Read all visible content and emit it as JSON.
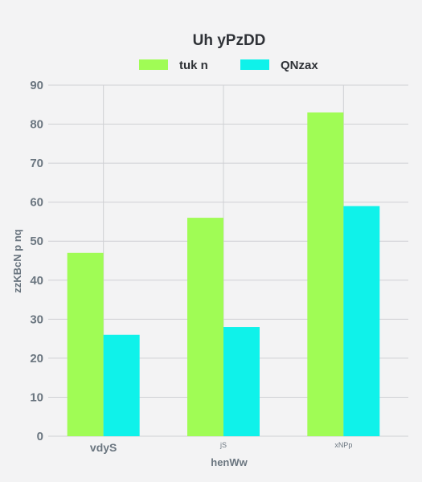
{
  "chart_data": {
    "type": "bar",
    "title": "Uh yPzDD",
    "xlabel": "henWw",
    "ylabel": "zzKBcN p nq",
    "categories": [
      "vdyS",
      "jS",
      "xNPp"
    ],
    "series": [
      {
        "name": "tuk n",
        "values": [
          47,
          56,
          83
        ],
        "color": "#a0fc55"
      },
      {
        "name": "QNzax",
        "values": [
          26,
          28,
          59
        ],
        "color": "#0ff2ea"
      }
    ],
    "ylim": [
      0,
      90
    ],
    "yticks": [
      0,
      10,
      20,
      30,
      40,
      50,
      60,
      70,
      80,
      90
    ],
    "grid": "horizontal and vertical",
    "legend_position": "top-center"
  }
}
